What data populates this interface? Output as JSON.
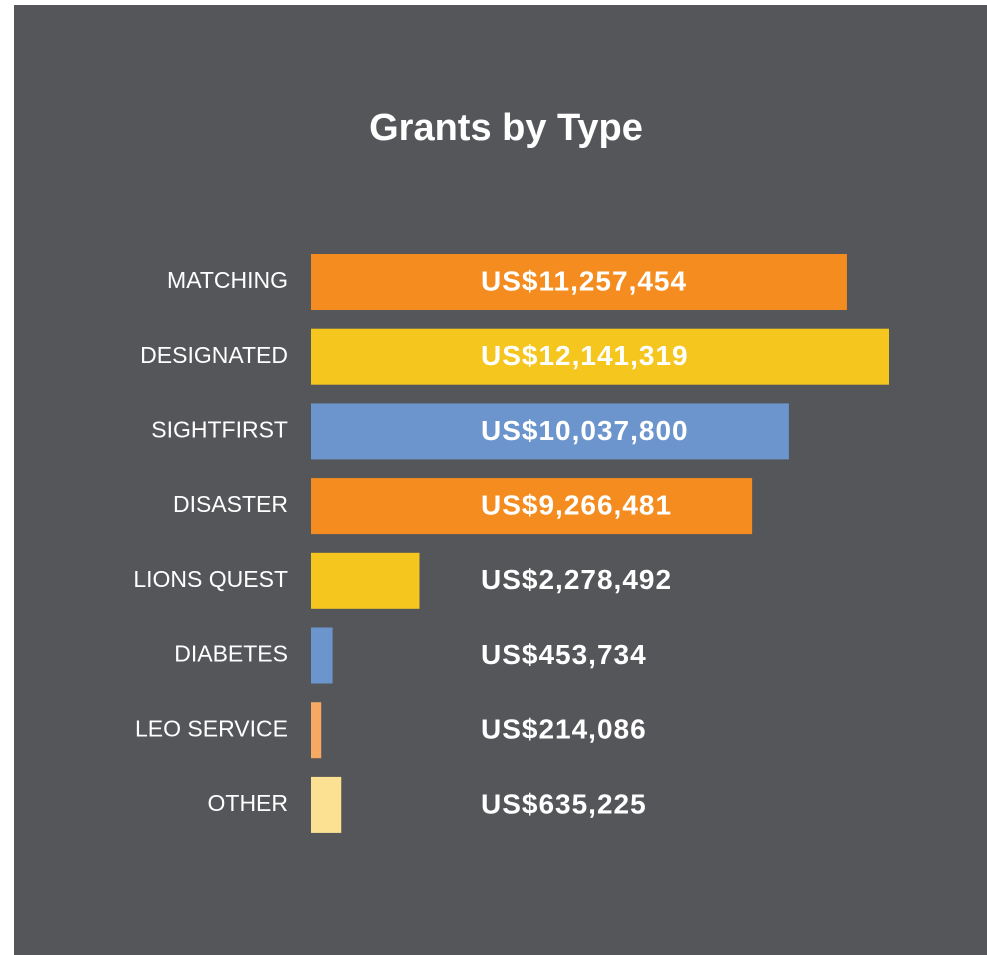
{
  "chart_data": {
    "type": "bar",
    "orientation": "horizontal",
    "title": "Grants by Type",
    "categories": [
      "MATCHING",
      "DESIGNATED",
      "SIGHTFIRST",
      "DISASTER",
      "LIONS QUEST",
      "DIABETES",
      "LEO SERVICE",
      "OTHER"
    ],
    "values": [
      11257454,
      12141319,
      10037800,
      9266481,
      2278492,
      453734,
      214086,
      635225
    ],
    "value_labels": [
      "US$11,257,454",
      "US$12,141,319",
      "US$10,037,800",
      "US$9,266,481",
      "US$2,278,492",
      "US$453,734",
      "US$214,086",
      "US$635,225"
    ],
    "colors": [
      "#f58c1f",
      "#f4c61e",
      "#6b95cc",
      "#f58c1f",
      "#f4c61e",
      "#6b95cc",
      "#f5a962",
      "#fde192"
    ]
  }
}
